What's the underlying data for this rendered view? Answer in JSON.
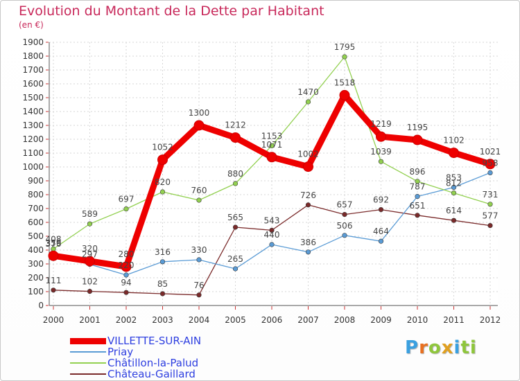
{
  "title": "Evolution du Montant de la Dette par Habitant",
  "subtitle": "(en €)",
  "logo": [
    "P",
    "r",
    "o",
    "x",
    "i",
    "t",
    "i"
  ],
  "logo_colors": [
    "#3aa0e0",
    "#e87020",
    "#8fc63c",
    "#e0a020",
    "#3aa0e0",
    "#8fc63c",
    "#8fc63c"
  ],
  "chart_data": {
    "type": "line",
    "x": [
      "2000",
      "2001",
      "2002",
      "2003",
      "2004",
      "2005",
      "2006",
      "2007",
      "2008",
      "2009",
      "2010",
      "2011",
      "2012"
    ],
    "ylim": [
      0,
      1900
    ],
    "yticks": [
      0,
      100,
      200,
      300,
      400,
      500,
      600,
      700,
      800,
      900,
      1000,
      1100,
      1200,
      1300,
      1400,
      1500,
      1600,
      1700,
      1800,
      1900
    ],
    "grid": true,
    "legend_position": "bottom-left",
    "series": [
      {
        "name": "VILLETTE-SUR-AIN",
        "color": "#ee0000",
        "values": [
          359,
          320,
          280,
          1052,
          1300,
          1212,
          1071,
          1002,
          1518,
          1219,
          1195,
          1102,
          1021
        ],
        "labels": [
          "359",
          "320",
          "280",
          "1052",
          "1300",
          "1212",
          "1071",
          "1002",
          "1518",
          "1219",
          "1195",
          "1102",
          "1021"
        ]
      },
      {
        "name": "Priay",
        "color": "#5a9bd5",
        "values": [
          376,
          297,
          220,
          316,
          330,
          265,
          440,
          386,
          506,
          464,
          787,
          853,
          958
        ],
        "labels": [
          "376",
          "297",
          "220",
          "316",
          "330",
          "265",
          "440",
          "386",
          "506",
          "464",
          "787",
          "853",
          "958"
        ]
      },
      {
        "name": "Châtillon-la-Palud",
        "color": "#92d050",
        "values": [
          408,
          589,
          697,
          820,
          760,
          880,
          1153,
          1470,
          1795,
          1039,
          896,
          812,
          731
        ],
        "labels": [
          "408",
          "589",
          "697",
          "820",
          "760",
          "880",
          "1153",
          "1470",
          "1795",
          "1039",
          "896",
          "812",
          "731"
        ]
      },
      {
        "name": "Château-Gaillard",
        "color": "#7a2a2a",
        "values": [
          111,
          102,
          94,
          85,
          76,
          565,
          543,
          726,
          657,
          692,
          651,
          614,
          577
        ],
        "labels": [
          "111",
          "102",
          "94",
          "85",
          "76",
          "565",
          "543",
          "726",
          "657",
          "692",
          "651",
          "614",
          "577"
        ]
      }
    ]
  }
}
